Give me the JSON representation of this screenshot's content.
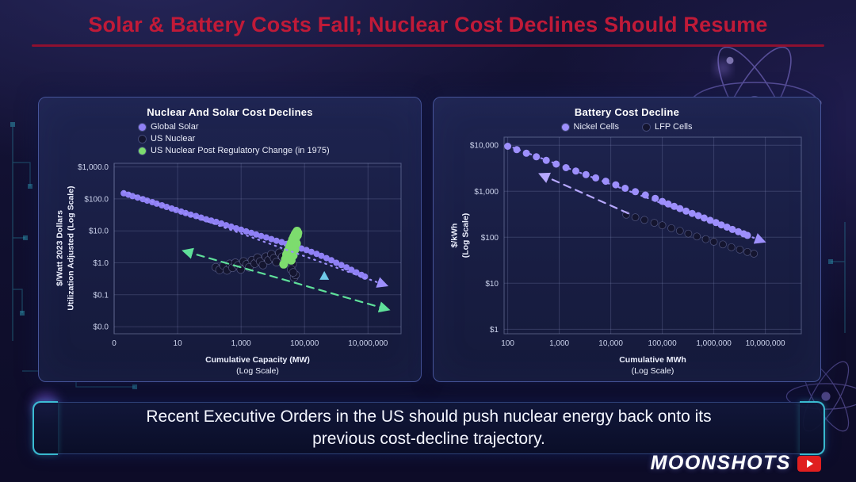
{
  "slide": {
    "title": "Solar & Battery Costs Fall; Nuclear Cost Declines Should Resume",
    "caption": {
      "line1": "Recent Executive Orders in the US should push nuclear energy back onto its",
      "line2": "previous cost-decline trajectory."
    },
    "brand": {
      "name": "MOONSHOTS"
    }
  },
  "colors": {
    "title_red": "#c01a38",
    "underline_red": "#8e1030",
    "accent_cyan": "#3fd4e6",
    "panel_border": "#46549a",
    "badge_red": "#e01f1f"
  },
  "chart_data": [
    {
      "type": "scatter",
      "title": "Nuclear And Solar Cost Declines",
      "xlabel": "Cumulative Capacity (MW)",
      "xlabel_sub": "(Log Scale)",
      "ylabel": "$/Watt 2023 Dollars",
      "ylabel_sub": "Utilization Adjusted (Log Scale)",
      "x_scale": "log",
      "y_scale": "log",
      "grid": true,
      "legend_position": "top-left",
      "x_domain": [
        0.1,
        110000000
      ],
      "y_domain": [
        0.006,
        1300
      ],
      "x_ticks": [
        {
          "value": 0.1,
          "label": "0"
        },
        {
          "value": 10,
          "label": "10"
        },
        {
          "value": 1000,
          "label": "1,000"
        },
        {
          "value": 100000,
          "label": "100,000"
        },
        {
          "value": 10000000,
          "label": "10,000,000"
        }
      ],
      "y_ticks": [
        {
          "value": 1000,
          "label": "$1,000.0"
        },
        {
          "value": 100,
          "label": "$100.0"
        },
        {
          "value": 10,
          "label": "$10.0"
        },
        {
          "value": 1,
          "label": "$1.0"
        },
        {
          "value": 0.1,
          "label": "$0.1"
        },
        {
          "value": 0.01,
          "label": "$0.0"
        }
      ],
      "series": [
        {
          "name": "Global Solar",
          "color": "#8f80f5",
          "stroke": "none",
          "size": 4,
          "points": [
            [
              0.2,
              150
            ],
            [
              0.28,
              135
            ],
            [
              0.38,
              122
            ],
            [
              0.55,
              110
            ],
            [
              0.8,
              98
            ],
            [
              1.1,
              88
            ],
            [
              1.6,
              79
            ],
            [
              2.2,
              71
            ],
            [
              3.2,
              63
            ],
            [
              4.5,
              56
            ],
            [
              6.5,
              50
            ],
            [
              9,
              45
            ],
            [
              13,
              40
            ],
            [
              18,
              36
            ],
            [
              26,
              32
            ],
            [
              38,
              29
            ],
            [
              55,
              26
            ],
            [
              80,
              23
            ],
            [
              115,
              21
            ],
            [
              165,
              19
            ],
            [
              240,
              17
            ],
            [
              340,
              15
            ],
            [
              490,
              13.5
            ],
            [
              700,
              12
            ],
            [
              1000,
              10.8
            ],
            [
              1450,
              9.6
            ],
            [
              2100,
              8.6
            ],
            [
              3000,
              7.7
            ],
            [
              4300,
              6.9
            ],
            [
              6200,
              6.2
            ],
            [
              9000,
              5.5
            ],
            [
              13000,
              4.9
            ],
            [
              19000,
              4.4
            ],
            [
              27000,
              3.9
            ],
            [
              39000,
              3.5
            ],
            [
              56000,
              3.1
            ],
            [
              80000,
              2.8
            ],
            [
              115000,
              2.5
            ],
            [
              165000,
              2.2
            ],
            [
              240000,
              1.9
            ],
            [
              340000,
              1.65
            ],
            [
              490000,
              1.4
            ],
            [
              700000,
              1.2
            ],
            [
              1000000,
              1.0
            ],
            [
              1450000,
              0.85
            ],
            [
              2100000,
              0.72
            ],
            [
              3000000,
              0.6
            ],
            [
              4300000,
              0.5
            ],
            [
              6200000,
              0.42
            ],
            [
              8000000,
              0.37
            ]
          ]
        },
        {
          "name": "US Nuclear",
          "color": "#14152f",
          "stroke": "rgba(150,158,210,0.45)",
          "size": 5,
          "points": [
            [
              160,
              0.72
            ],
            [
              210,
              0.6
            ],
            [
              280,
              0.82
            ],
            [
              360,
              0.58
            ],
            [
              440,
              0.92
            ],
            [
              540,
              0.7
            ],
            [
              660,
              1.0
            ],
            [
              800,
              0.82
            ],
            [
              980,
              0.62
            ],
            [
              1200,
              1.1
            ],
            [
              1500,
              0.9
            ],
            [
              1800,
              0.72
            ],
            [
              2200,
              1.2
            ],
            [
              2700,
              0.95
            ],
            [
              3300,
              1.45
            ],
            [
              4000,
              1.1
            ],
            [
              4900,
              0.85
            ],
            [
              6000,
              1.55
            ],
            [
              7300,
              1.2
            ],
            [
              9000,
              1.85
            ],
            [
              11000,
              1.4
            ],
            [
              13000,
              1.05
            ],
            [
              16000,
              2.05
            ],
            [
              20000,
              1.55
            ],
            [
              24000,
              1.15
            ],
            [
              29000,
              2.2
            ],
            [
              35000,
              1.7
            ],
            [
              42000,
              0.9
            ],
            [
              38000,
              0.62
            ],
            [
              47000,
              0.35
            ],
            [
              52000,
              0.42
            ],
            [
              44000,
              0.5
            ]
          ]
        },
        {
          "name": "US Nuclear Post Regulatory Change (in 1975)",
          "color": "#7ddc6e",
          "stroke": "none",
          "size": 5.5,
          "points": [
            [
              22000,
              0.9
            ],
            [
              25000,
              1.3
            ],
            [
              27000,
              1.8
            ],
            [
              30000,
              2.4
            ],
            [
              32000,
              1.5
            ],
            [
              34000,
              3.2
            ],
            [
              36000,
              2.1
            ],
            [
              38000,
              4.2
            ],
            [
              40000,
              2.9
            ],
            [
              42000,
              5.4
            ],
            [
              44000,
              3.7
            ],
            [
              46000,
              6.6
            ],
            [
              48000,
              4.6
            ],
            [
              50000,
              7.8
            ],
            [
              52000,
              5.6
            ],
            [
              54000,
              8.8
            ],
            [
              56000,
              6.8
            ],
            [
              58000,
              9.8
            ],
            [
              50000,
              2.6
            ],
            [
              44000,
              1.7
            ],
            [
              56000,
              4.0
            ],
            [
              60000,
              7.2
            ],
            [
              62000,
              8.6
            ],
            [
              38000,
              1.2
            ]
          ]
        }
      ],
      "arrows": [
        {
          "name": "solar-trend-arrow",
          "style": "dotted",
          "color": "#9d8ffc",
          "from": [
            0.2,
            170
          ],
          "to": [
            35000000,
            0.2
          ],
          "heads": "end"
        },
        {
          "name": "nuclear-trend-arrow",
          "style": "dashed",
          "color": "#5fe09a",
          "from": [
            17,
            2.3
          ],
          "to": [
            40000000,
            0.035
          ],
          "heads": "both"
        }
      ],
      "markers": [
        {
          "name": "solar-current-marker",
          "shape": "triangle",
          "color": "#6fc9e8",
          "x": 420000,
          "y": 0.38
        }
      ]
    },
    {
      "type": "scatter",
      "title": "Battery Cost Decline",
      "xlabel": "Cumulative MWh",
      "xlabel_sub": "(Log Scale)",
      "ylabel": "$/kWh",
      "ylabel_sub": "(Log Scale)",
      "x_scale": "log",
      "y_scale": "log",
      "grid": true,
      "legend_position": "top-center",
      "x_domain": [
        85,
        50000000
      ],
      "y_domain": [
        0.8,
        15000
      ],
      "x_ticks": [
        {
          "value": 100,
          "label": "100"
        },
        {
          "value": 1000,
          "label": "1,000"
        },
        {
          "value": 10000,
          "label": "10,000"
        },
        {
          "value": 100000,
          "label": "100,000"
        },
        {
          "value": 1000000,
          "label": "1,000,000"
        },
        {
          "value": 10000000,
          "label": "10,000,000"
        }
      ],
      "y_ticks": [
        {
          "value": 10000,
          "label": "$10,000"
        },
        {
          "value": 1000,
          "label": "$1,000"
        },
        {
          "value": 100,
          "label": "$100"
        },
        {
          "value": 10,
          "label": "$10"
        },
        {
          "value": 1,
          "label": "$1"
        }
      ],
      "series": [
        {
          "name": "Nickel Cells",
          "color": "#9d8ffc",
          "stroke": "none",
          "size": 4.5,
          "points": [
            [
              100,
              9500
            ],
            [
              150,
              8000
            ],
            [
              230,
              6700
            ],
            [
              360,
              5600
            ],
            [
              560,
              4700
            ],
            [
              870,
              3900
            ],
            [
              1350,
              3250
            ],
            [
              2100,
              2750
            ],
            [
              3300,
              2300
            ],
            [
              5100,
              1950
            ],
            [
              8000,
              1650
            ],
            [
              12500,
              1380
            ],
            [
              19000,
              1160
            ],
            [
              30000,
              980
            ],
            [
              47000,
              830
            ],
            [
              73000,
              700
            ],
            [
              100000,
              600
            ],
            [
              130000,
              530
            ],
            [
              170000,
              470
            ],
            [
              220000,
              420
            ],
            [
              290000,
              370
            ],
            [
              380000,
              330
            ],
            [
              500000,
              295
            ],
            [
              650000,
              262
            ],
            [
              850000,
              234
            ],
            [
              1100000,
              208
            ],
            [
              1400000,
              186
            ],
            [
              1800000,
              166
            ],
            [
              2300000,
              148
            ],
            [
              3000000,
              132
            ],
            [
              3800000,
              119
            ],
            [
              4500000,
              110
            ]
          ]
        },
        {
          "name": "LFP Cells",
          "color": "#14152f",
          "stroke": "rgba(150,158,210,0.45)",
          "size": 4.5,
          "points": [
            [
              20000,
              310
            ],
            [
              30000,
              272
            ],
            [
              45000,
              238
            ],
            [
              70000,
              206
            ],
            [
              100000,
              182
            ],
            [
              150000,
              158
            ],
            [
              220000,
              138
            ],
            [
              320000,
              120
            ],
            [
              470000,
              104
            ],
            [
              700000,
              91
            ],
            [
              1000000,
              80
            ],
            [
              1500000,
              70
            ],
            [
              2200000,
              61
            ],
            [
              3200000,
              54
            ],
            [
              4500000,
              48
            ],
            [
              6000000,
              44
            ]
          ]
        }
      ],
      "arrows": [
        {
          "name": "nickel-trend-arrow",
          "style": "dotted",
          "color": "#9d8ffc",
          "from": [
            100,
            9800
          ],
          "to": [
            9000000,
            82
          ],
          "heads": "end"
        },
        {
          "name": "lfp-trend-arrow",
          "style": "dashed",
          "color": "#b7a8ff",
          "from": [
            22000,
            330
          ],
          "to": [
            450,
            2300
          ],
          "heads": "end"
        }
      ],
      "markers": []
    }
  ]
}
